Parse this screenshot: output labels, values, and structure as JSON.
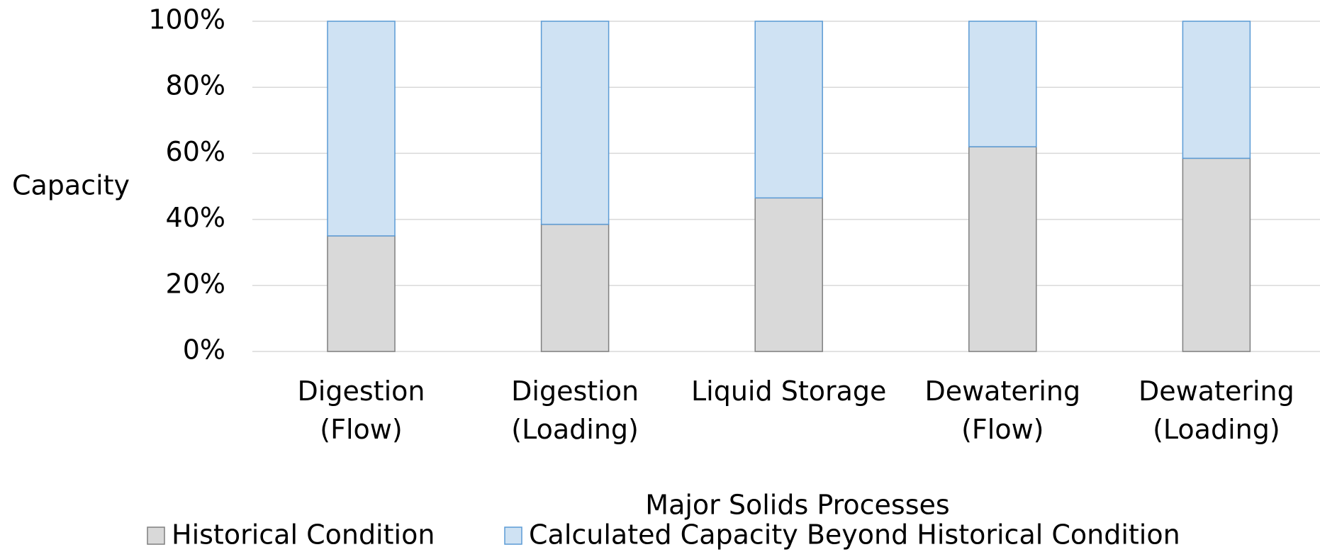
{
  "chart_data": {
    "type": "stacked_bar",
    "x_label": "Major Solids Processes",
    "y_label": "Capacity",
    "categories": [
      "Digestion\n(Flow)",
      "Digestion\n(Loading)",
      "Liquid Storage",
      "Dewatering\n(Flow)",
      "Dewatering\n(Loading)"
    ],
    "series": [
      {
        "name": "Historical Condition",
        "color": "#d9d9d9",
        "edge": "#7f7f7f",
        "values": [
          35,
          38.5,
          46.5,
          62,
          58.5
        ]
      },
      {
        "name": "Calculated Capacity Beyond Historical Condition",
        "color": "#cfe2f3",
        "edge": "#5b9bd5",
        "values": [
          65,
          61.5,
          53.5,
          38,
          41.5
        ]
      }
    ],
    "ylim": [
      0,
      100
    ],
    "yticks": [
      {
        "value": 0,
        "label": "0%"
      },
      {
        "value": 20,
        "label": "20%"
      },
      {
        "value": 40,
        "label": "40%"
      },
      {
        "value": 60,
        "label": "60%"
      },
      {
        "value": 80,
        "label": "80%"
      },
      {
        "value": 100,
        "label": "100%"
      }
    ],
    "grid": true,
    "legend": "bottom"
  }
}
